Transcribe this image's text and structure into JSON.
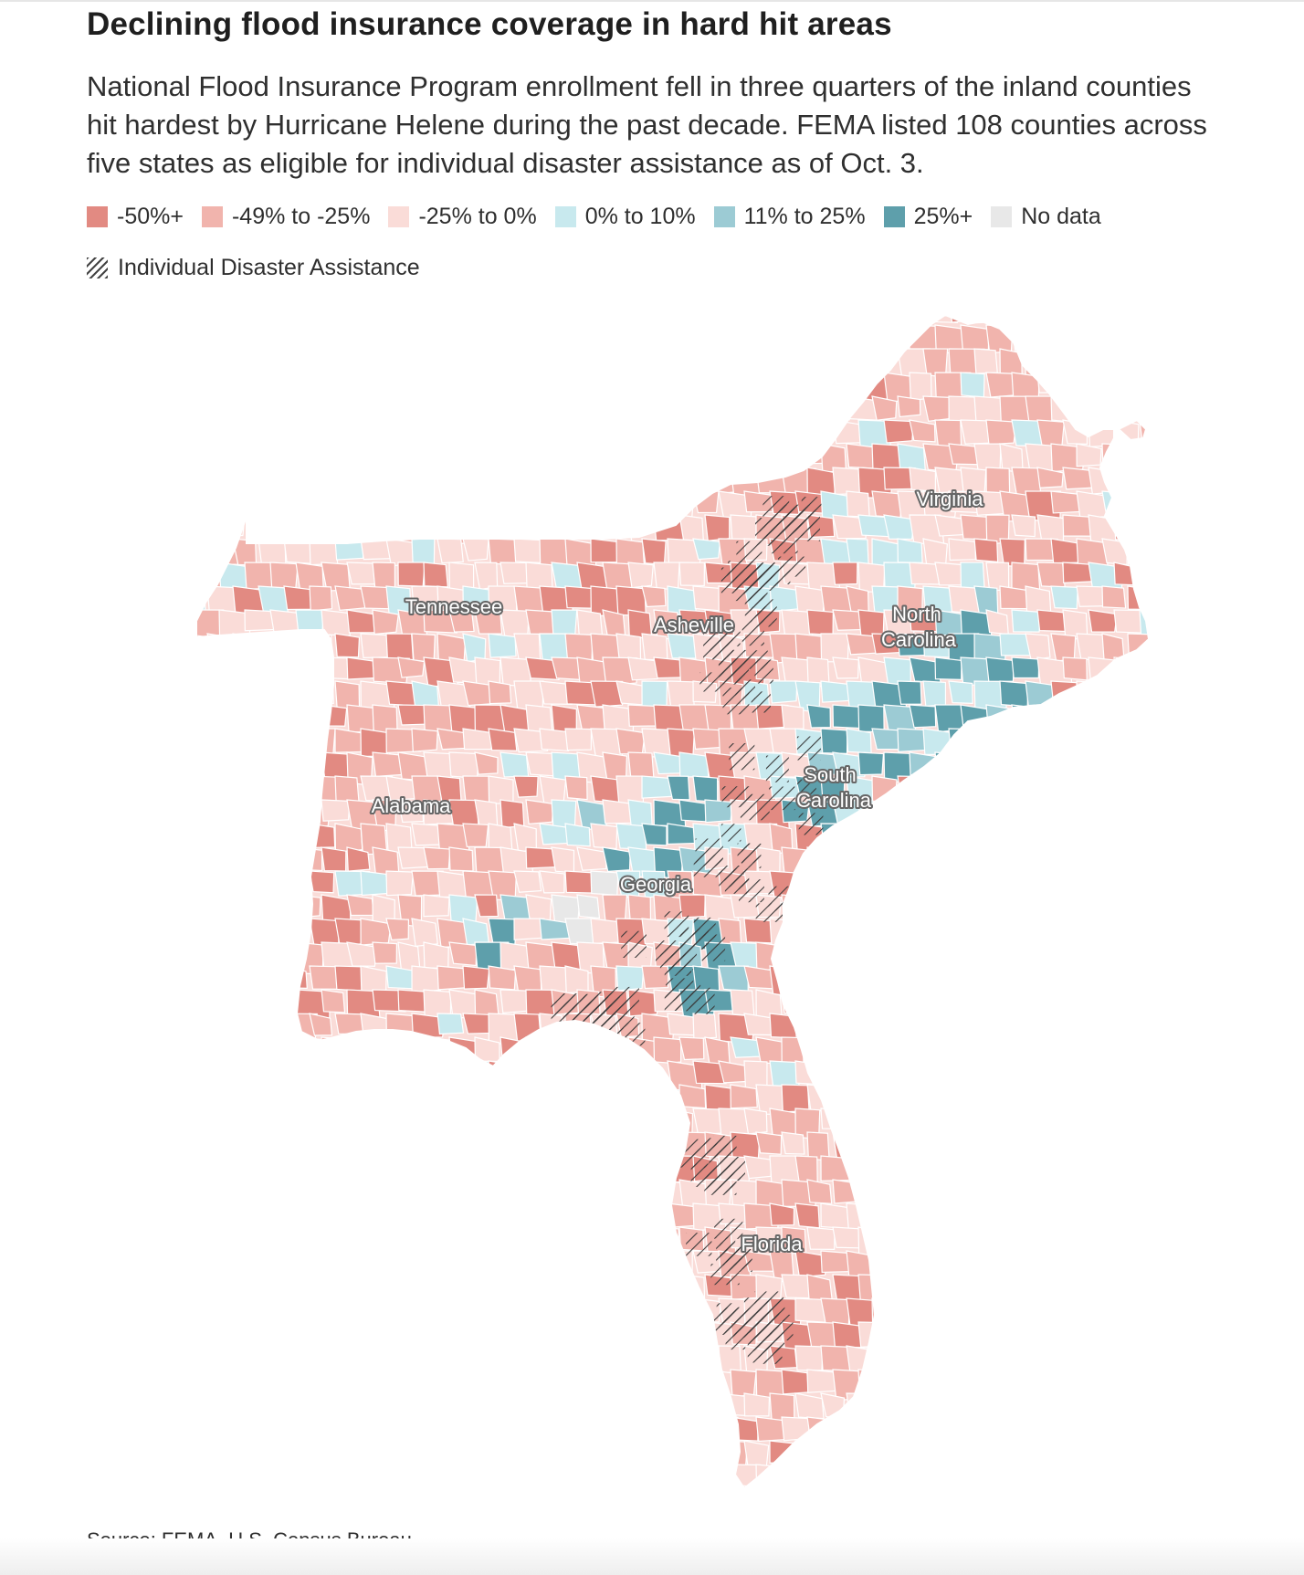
{
  "header": {
    "title": "Declining flood insurance coverage in hard hit areas",
    "subtitle": "National Flood Insurance Program enrollment fell in three quarters of the inland counties hit hardest by Hurricane Helene during the past decade. FEMA listed 108 counties across five states as eligible for individual disaster assistance as of Oct. 3."
  },
  "legend": {
    "items": [
      {
        "label": "-50%+",
        "color": "#e28a82"
      },
      {
        "label": "-49% to -25%",
        "color": "#f1b4ad"
      },
      {
        "label": "-25% to 0%",
        "color": "#fadcd8"
      },
      {
        "label": "0% to 10%",
        "color": "#c8e9ee"
      },
      {
        "label": "11% to 25%",
        "color": "#9ccbd4"
      },
      {
        "label": "25%+",
        "color": "#5e9fab"
      },
      {
        "label": "No data",
        "color": "#e8e8e8"
      }
    ],
    "hatch_label": "Individual Disaster Assistance"
  },
  "map": {
    "state_labels": {
      "virginia": "Virginia",
      "tennessee": "Tennessee",
      "asheville": "Asheville",
      "north_carolina_1": "North",
      "north_carolina_2": "Carolina",
      "south_carolina_1": "South",
      "south_carolina_2": "Carolina",
      "alabama": "Alabama",
      "georgia": "Georgia",
      "florida": "Florida"
    },
    "colors": {
      "c50": "#e28a82",
      "c49": "#f1b4ad",
      "c25": "#fadcd8",
      "p10": "#c8e9ee",
      "p25": "#9ccbd4",
      "p25plus": "#5e9fab",
      "nodata": "#e8e8e8"
    }
  },
  "source": "Source: FEMA, U.S. Census Bureau"
}
